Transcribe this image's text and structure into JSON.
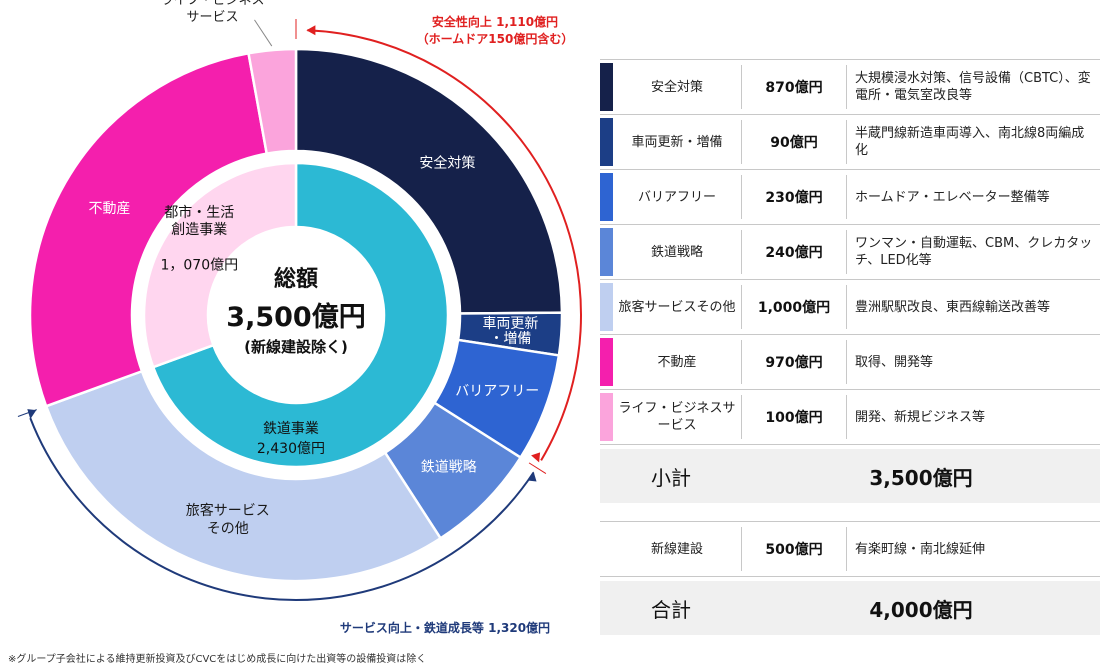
{
  "chart_data": {
    "type": "pie",
    "subtype": "nested-donut",
    "center": {
      "title": "総額",
      "total": "3,500億円",
      "note": "(新線建設除く)"
    },
    "inner_ring": [
      {
        "name": "鉄道事業",
        "value_label": "2,430億円",
        "value": 2430,
        "color": "#2cb9d4"
      },
      {
        "name": "都市・生活\n創造事業",
        "value_label": "1，070億円",
        "value": 1070,
        "color": "#ffd6ef"
      }
    ],
    "outer_ring": [
      {
        "name": "安全対策",
        "value": 870,
        "color": "#15214a"
      },
      {
        "name": "車両更新\n・増備",
        "value": 90,
        "color": "#1c3e86"
      },
      {
        "name": "バリアフリー",
        "value": 230,
        "color": "#2e64d2"
      },
      {
        "name": "鉄道戦略",
        "value": 240,
        "color": "#5b86d8"
      },
      {
        "name": "旅客サービス\nその他",
        "value": 1000,
        "color": "#bfcff0"
      },
      {
        "name": "不動産",
        "value": 970,
        "color": "#f41fad"
      },
      {
        "name": "ライフ・ビジネス\nサービス",
        "value": 100,
        "color": "#fba4dc"
      }
    ],
    "annotations": {
      "safety": {
        "text1": "安全性向上 1,110億円",
        "text2": "（ホームドア150億円含む）",
        "color": "#e02020"
      },
      "service": {
        "text": "サービス向上・鉄道成長等 1,320億円",
        "color": "#1f3a7a"
      }
    }
  },
  "table": {
    "rows": [
      {
        "name": "安全対策",
        "amount": "870億円",
        "desc": "大規模浸水対策、信号設備（CBTC）、変電所・電気室改良等",
        "color": "#15214a"
      },
      {
        "name": "車両更新・増備",
        "amount": "90億円",
        "desc": "半蔵門線新造車両導入、南北線8両編成化",
        "color": "#1c3e86"
      },
      {
        "name": "バリアフリー",
        "amount": "230億円",
        "desc": "ホームドア・エレベーター整備等",
        "color": "#2e64d2"
      },
      {
        "name": "鉄道戦略",
        "amount": "240億円",
        "desc": "ワンマン・自動運転、CBM、クレカタッチ、LED化等",
        "color": "#5b86d8"
      },
      {
        "name": "旅客サービスその他",
        "amount": "1,000億円",
        "desc": "豊洲駅駅改良、東西線輸送改善等",
        "color": "#bfcff0"
      },
      {
        "name": "不動産",
        "amount": "970億円",
        "desc": "取得、開発等",
        "color": "#f41fad"
      },
      {
        "name": "ライフ・ビジネスサービス",
        "amount": "100億円",
        "desc": "開発、新規ビジネス等",
        "color": "#fba4dc"
      }
    ],
    "subtotal": {
      "label": "小計",
      "value": "3,500億円"
    },
    "extra": {
      "name": "新線建設",
      "amount": "500億円",
      "desc": "有楽町線・南北線延伸"
    },
    "total": {
      "label": "合計",
      "value": "4,000億円"
    }
  },
  "footnote": "※グループ子会社による維持更新投資及びCVCをはじめ成長に向けた出資等の設備投資は除く"
}
